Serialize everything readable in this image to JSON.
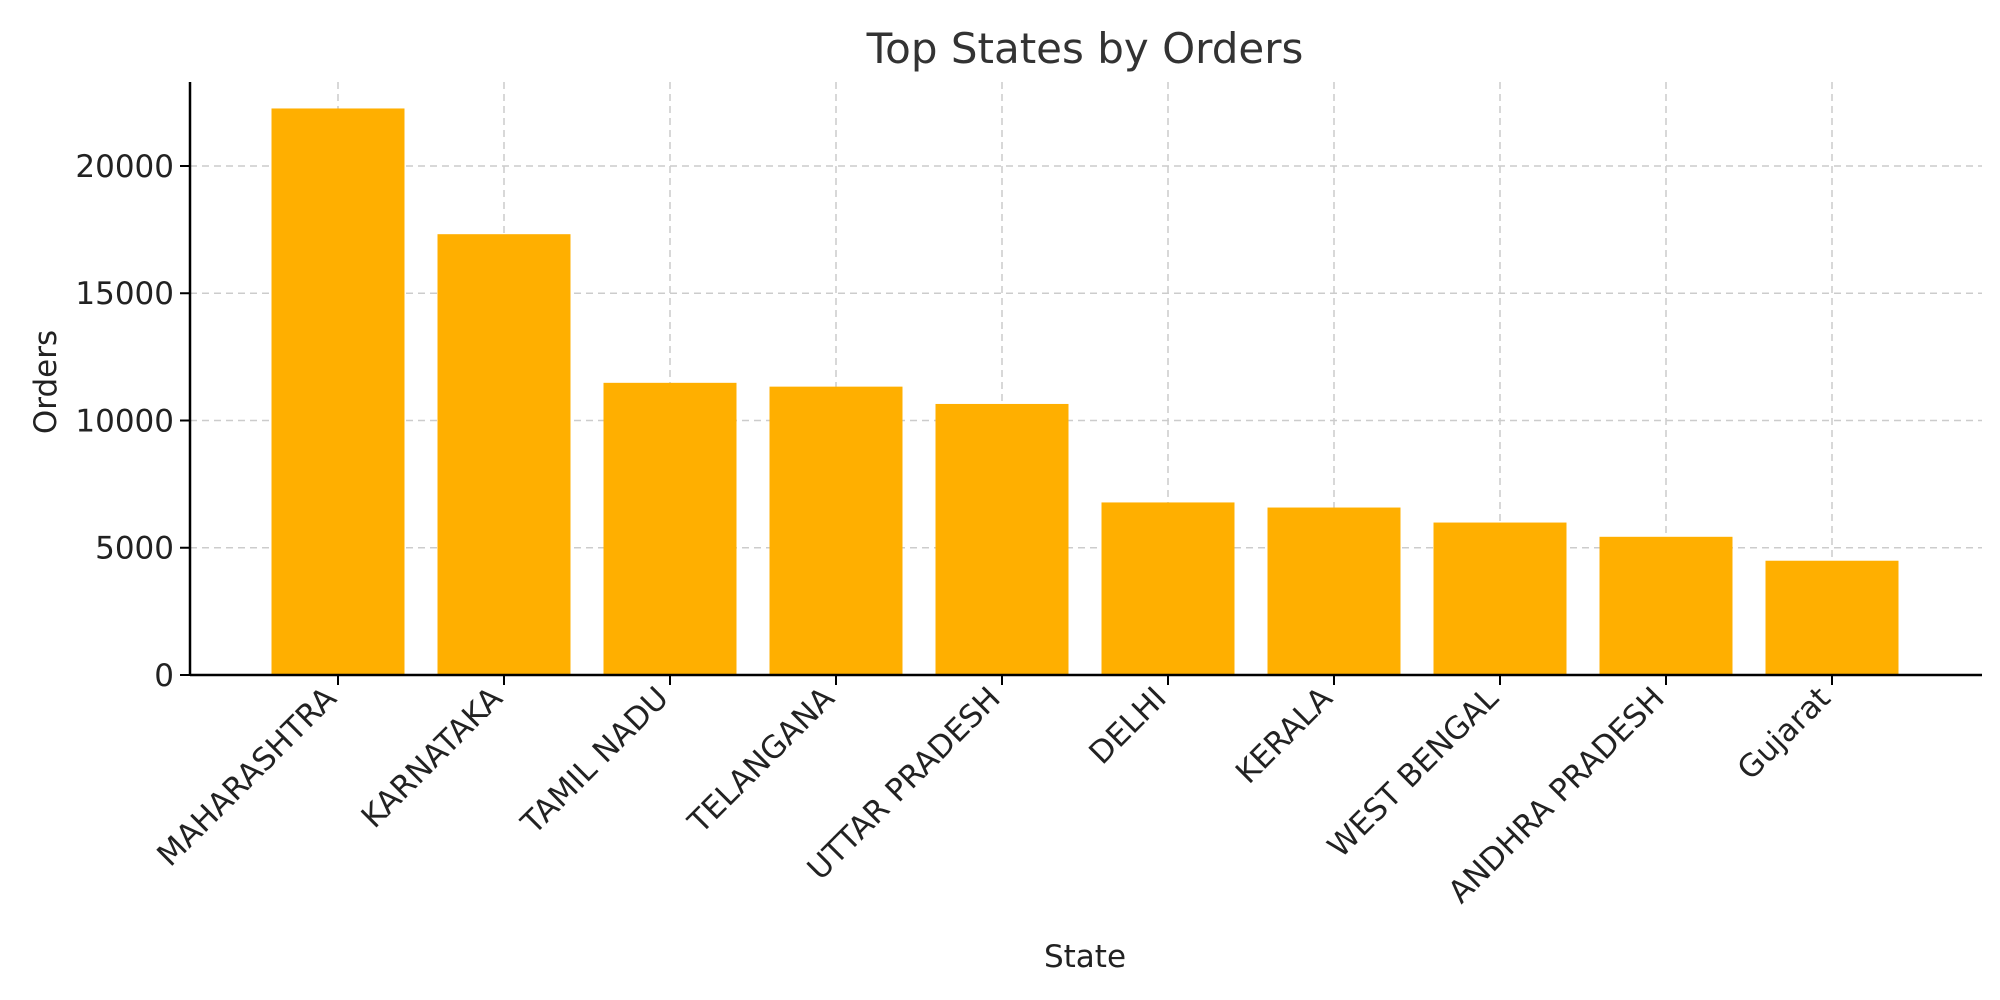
{
  "chart_data": {
    "type": "bar",
    "title": "Top States by Orders",
    "xlabel": "State",
    "ylabel": "Orders",
    "categories": [
      "MAHARASHTRA",
      "KARNATAKA",
      "TAMIL NADU",
      "TELANGANA",
      "UTTAR PRADESH",
      "DELHI",
      "KERALA",
      "WEST BENGAL",
      "ANDHRA PRADESH",
      "Gujarat"
    ],
    "values": [
      22260,
      17320,
      11480,
      11330,
      10650,
      6780,
      6580,
      5990,
      5430,
      4490
    ],
    "ylim": [
      0,
      23300
    ],
    "yticks": [
      0,
      5000,
      10000,
      15000,
      20000
    ],
    "grid": true,
    "bar_color": "#ffaf00",
    "grid_color": "#cccccc",
    "axis_color": "#000000"
  }
}
